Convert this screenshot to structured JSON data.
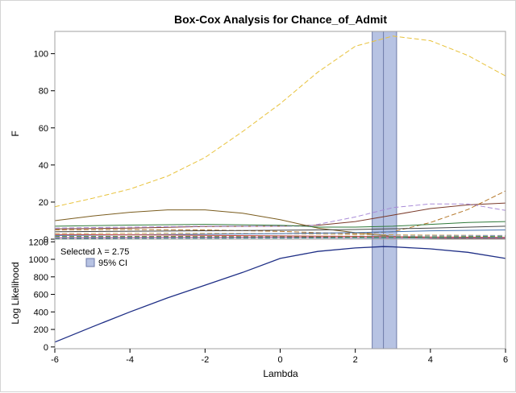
{
  "chart_data": {
    "title": "Box-Cox Analysis for Chance_of_Admit",
    "xlabel": "Lambda",
    "x_ticks": [
      -6,
      -4,
      -2,
      0,
      2,
      4,
      6
    ],
    "xlim": [
      -6,
      6
    ],
    "selected_lambda": 2.75,
    "ci": [
      2.45,
      3.1
    ],
    "colors": {
      "ci_fill": "#b7c3e3",
      "ci_edge": "#6d7aa8",
      "likelihood": "#1f2f86",
      "axis": "#000000",
      "frame": "#a0a0a0"
    },
    "panels": [
      {
        "type": "line",
        "ylabel": "F",
        "ylim": [
          0,
          112
        ],
        "y_ticks": [
          0,
          20,
          40,
          60,
          80,
          100
        ],
        "series": [
          {
            "color": "#e8c23a",
            "dash": "6,3",
            "x": [
              -6,
              -5,
              -4,
              -3,
              -2,
              -1,
              0,
              1,
              2,
              3,
              4,
              5,
              6
            ],
            "y": [
              17.5,
              22,
              27,
              34,
              44,
              58,
              73,
              90,
              104,
              109.5,
              107,
              99,
              88
            ]
          },
          {
            "color": "#7a5c1e",
            "dash": "",
            "x": [
              -6,
              -5,
              -4,
              -3,
              -2,
              -1,
              0,
              1,
              2,
              3,
              4,
              5,
              6
            ],
            "y": [
              10,
              12.5,
              14.5,
              15.8,
              15.8,
              14,
              10.5,
              6,
              3.5,
              1.5,
              0.5,
              0.3,
              0.2
            ]
          },
          {
            "color": "#7a3a2a",
            "dash": "",
            "x": [
              -6,
              -4,
              -2,
              0,
              1,
              2,
              3,
              4,
              5,
              6
            ],
            "y": [
              5.5,
              6,
              6.8,
              7,
              7.5,
              9.5,
              13,
              16.5,
              18.5,
              19.5
            ]
          },
          {
            "color": "#a98bd8",
            "dash": "6,3",
            "x": [
              -6,
              -4,
              -2,
              0,
              0.7,
              1,
              2,
              3,
              4,
              5,
              6
            ],
            "y": [
              6,
              6.5,
              7,
              7,
              7,
              8,
              12,
              17,
              19,
              19,
              15.5
            ]
          },
          {
            "color": "#b5782a",
            "dash": "6,3",
            "x": [
              -6,
              -4,
              -2,
              0,
              1,
              2,
              3,
              4,
              5,
              6
            ],
            "y": [
              5,
              5.2,
              5,
              4.2,
              3.5,
              3,
              4,
              9,
              16,
              26
            ]
          },
          {
            "color": "#2f7a3a",
            "dash": "",
            "x": [
              -6,
              -4,
              -2,
              0,
              0.7,
              1,
              2,
              3,
              4,
              5,
              6
            ],
            "y": [
              7,
              7.6,
              8,
              7.5,
              7,
              6.5,
              6.5,
              7,
              8,
              9,
              9.5
            ]
          },
          {
            "color": "#c8a35a",
            "dash": "6,3",
            "x": [
              -6,
              -3,
              0,
              2,
              4,
              6
            ],
            "y": [
              3,
              3.2,
              3,
              2.5,
              2.2,
              2
            ]
          },
          {
            "color": "#444444",
            "dash": "",
            "x": [
              -6,
              -3,
              0,
              2,
              4,
              6
            ],
            "y": [
              4,
              4.4,
              4.8,
              5.2,
              6,
              7
            ]
          },
          {
            "color": "#3f6fb0",
            "dash": "",
            "x": [
              -6,
              -3,
              0,
              2,
              4,
              6
            ],
            "y": [
              2,
              2.5,
              3,
              3.5,
              4.5,
              5
            ]
          },
          {
            "color": "#8aa0d0",
            "dash": "6,3",
            "x": [
              -6,
              -3,
              0,
              2,
              4,
              6
            ],
            "y": [
              1,
              1.2,
              1.4,
              1.6,
              1.8,
              2
            ]
          },
          {
            "color": "#c04040",
            "dash": "",
            "x": [
              -6,
              -3,
              0,
              2,
              4,
              6
            ],
            "y": [
              2.5,
              2.2,
              1.8,
              1.5,
              1.2,
              1
            ]
          },
          {
            "color": "#6b8e3a",
            "dash": "6,3",
            "x": [
              -6,
              -3,
              0,
              2,
              4,
              6
            ],
            "y": [
              1.5,
              1.5,
              1.4,
              1.2,
              1.3,
              1.6
            ]
          },
          {
            "color": "#9a4c8a",
            "dash": "",
            "x": [
              -6,
              -3,
              0,
              2,
              4,
              6
            ],
            "y": [
              0.8,
              0.9,
              1,
              0.8,
              0.6,
              0.5
            ]
          },
          {
            "color": "#2a8a8a",
            "dash": "6,3",
            "x": [
              -6,
              -3,
              0,
              2,
              4,
              6
            ],
            "y": [
              0.4,
              0.5,
              0.6,
              0.7,
              0.8,
              1
            ]
          }
        ]
      },
      {
        "type": "line",
        "ylabel": "Log Likelihood",
        "ylim": [
          -20,
          1230
        ],
        "y_ticks": [
          0,
          200,
          400,
          600,
          800,
          1000,
          1200
        ],
        "series": [
          {
            "color": "#1f2f86",
            "dash": "",
            "x": [
              -6,
              -5,
              -4,
              -3,
              -2,
              -1,
              0,
              1,
              2,
              2.75,
              3,
              4,
              5,
              6
            ],
            "y": [
              55,
              230,
              400,
              560,
              705,
              850,
              1010,
              1090,
              1130,
              1145,
              1143,
              1120,
              1080,
              1010
            ]
          }
        ],
        "legend": {
          "position": "top-left",
          "selected_label": "Selected λ = 2.75",
          "ci_label": "95% CI"
        }
      }
    ]
  }
}
